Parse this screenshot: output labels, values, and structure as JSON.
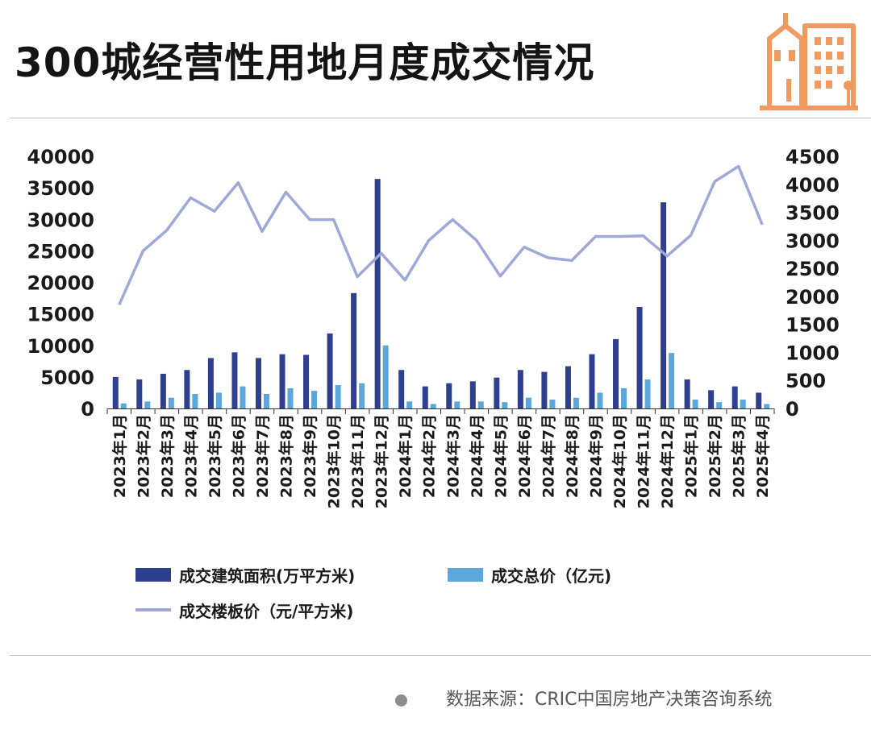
{
  "title": "300城经营性用地月度成交情况",
  "source": "数据来源：CRIC中国房地产决策咨询系统",
  "colors": {
    "area": "#2f3f8f",
    "total": "#5ba7db",
    "price": "#9ea9d8",
    "icon": "#ef9a5e"
  },
  "chart_data": {
    "type": "bar",
    "categories": [
      "2023年1月",
      "2023年2月",
      "2023年3月",
      "2023年4月",
      "2023年5月",
      "2023年6月",
      "2023年7月",
      "2023年8月",
      "2023年9月",
      "2023年10月",
      "2023年11月",
      "2023年12月",
      "2024年1月",
      "2024年2月",
      "2024年3月",
      "2024年4月",
      "2024年5月",
      "2024年6月",
      "2024年7月",
      "2024年8月",
      "2024年9月",
      "2024年10月",
      "2024年11月",
      "2024年12月",
      "2025年1月",
      "2025年2月",
      "2025年3月",
      "2025年4月"
    ],
    "series": [
      {
        "name": "成交建筑面积(万平方米",
        "type": "bar",
        "axis": "left",
        "values": [
          5000,
          4600,
          5500,
          6100,
          8000,
          8900,
          8000,
          8600,
          8500,
          11900,
          18300,
          36400,
          6100,
          3500,
          4000,
          4300,
          4900,
          6100,
          5800,
          6700,
          8600,
          11000,
          16100,
          32700,
          4600,
          2900,
          3500,
          2500
        ]
      },
      {
        "name": "成交总价（亿元",
        "type": "bar",
        "axis": "left",
        "values": [
          800,
          1100,
          1700,
          2300,
          2500,
          3500,
          2300,
          3200,
          2800,
          3700,
          4000,
          10000,
          1100,
          700,
          1100,
          1100,
          1000,
          1700,
          1400,
          1700,
          2500,
          3200,
          4600,
          8800,
          1400,
          1000,
          1400,
          700
        ]
      },
      {
        "name": "成交楼板价（元/平方米",
        "type": "line",
        "axis": "right",
        "values": [
          1850,
          2810,
          3180,
          3760,
          3520,
          4030,
          3160,
          3860,
          3370,
          3370,
          2350,
          2770,
          2290,
          3000,
          3370,
          3000,
          2360,
          2880,
          2690,
          2640,
          3070,
          3070,
          3080,
          2720,
          3090,
          4050,
          4320,
          3280
        ]
      }
    ],
    "ylim_left": [
      0,
      40000
    ],
    "yticks_left": [
      "40000",
      "35000",
      "30000",
      "25000",
      "20000",
      "15000",
      "10000",
      "5000",
      "0"
    ],
    "ylim_right": [
      0,
      4500
    ],
    "yticks_right": [
      "4500",
      "4000",
      "3500",
      "3000",
      "2500",
      "2000",
      "1500",
      "1000",
      "500",
      "0"
    ],
    "legend": [
      "成交建筑面积(万平方米)",
      "成交总价（亿元)",
      "成交楼板价（元/平方米)"
    ],
    "legend_position": "bottom"
  }
}
